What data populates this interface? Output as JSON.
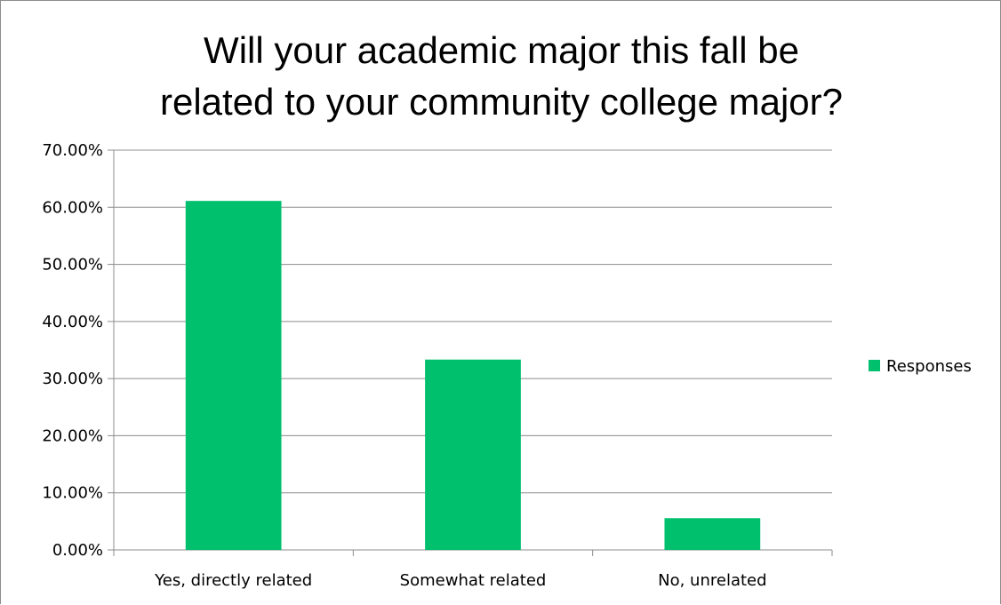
{
  "chart_data": {
    "type": "bar",
    "title_lines": [
      "Will your academic major this fall be",
      "related to your community college major?"
    ],
    "categories": [
      "Yes, directly related",
      "Somewhat related",
      "No, unrelated"
    ],
    "series": [
      {
        "name": "Responses",
        "values": [
          61.11,
          33.33,
          5.56
        ],
        "color": "#00c06e"
      }
    ],
    "ylim": [
      0,
      70
    ],
    "ytick_step": 10,
    "ytick_labels": [
      "0.00%",
      "10.00%",
      "20.00%",
      "30.00%",
      "40.00%",
      "50.00%",
      "60.00%",
      "70.00%"
    ],
    "grid": true,
    "legend_position": "right",
    "xlabel": "",
    "ylabel": ""
  }
}
